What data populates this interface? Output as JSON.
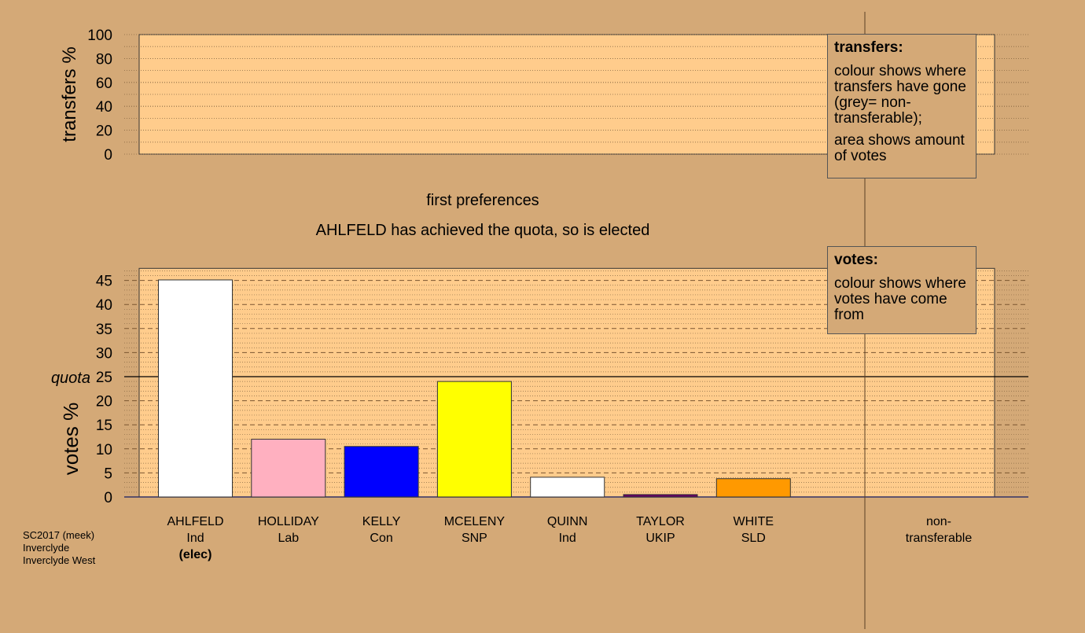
{
  "top_panel": {
    "ylabel": "transfers %",
    "ticks": [
      "0",
      "20",
      "40",
      "60",
      "80",
      "100"
    ]
  },
  "headings": {
    "stage": "first preferences",
    "status": "AHLFELD has achieved the quota, so is elected"
  },
  "legend_transfers": {
    "title": "transfers:",
    "line1": "colour shows where transfers have gone (grey= non-transferable);",
    "line2": "area shows amount of votes"
  },
  "legend_votes": {
    "title": "votes:",
    "line1": "colour shows where votes have come from"
  },
  "footer": {
    "line1": "SC2017 (meek)",
    "line2": "Inverclyde",
    "line3": "Inverclyde West"
  },
  "chart_data": [
    {
      "type": "bar",
      "ylabel": "transfers %",
      "ylim": [
        0,
        100
      ],
      "yticks": [
        0,
        20,
        40,
        60,
        80,
        100
      ],
      "values": []
    },
    {
      "type": "bar",
      "ylabel": "votes %",
      "ylim": [
        0,
        47.5
      ],
      "yticks": [
        0,
        5,
        10,
        15,
        20,
        25,
        30,
        35,
        40,
        45
      ],
      "quota": {
        "label": "quota",
        "value": 25
      },
      "categories": [
        "AHLFELD",
        "HOLLIDAY",
        "KELLY",
        "MCELENY",
        "QUINN",
        "TAYLOR",
        "WHITE",
        "non-transferable"
      ],
      "category_lines": [
        [
          "AHLFELD",
          "Ind",
          "(elec)"
        ],
        [
          "HOLLIDAY",
          "Lab"
        ],
        [
          "KELLY",
          "Con"
        ],
        [
          "MCELENY",
          "SNP"
        ],
        [
          "QUINN",
          "Ind"
        ],
        [
          "TAYLOR",
          "UKIP"
        ],
        [
          "WHITE",
          "SLD"
        ],
        [
          "non-",
          "transferable"
        ]
      ],
      "values": [
        45.1,
        12.0,
        10.5,
        24.0,
        4.1,
        0.5,
        3.8,
        0
      ],
      "colors": [
        "#FFFFFF",
        "#FFB0C0",
        "#0000FF",
        "#FFFF00",
        "#FFFFFF",
        "#660066",
        "#FF9900",
        "#999999"
      ],
      "grid": true
    }
  ]
}
